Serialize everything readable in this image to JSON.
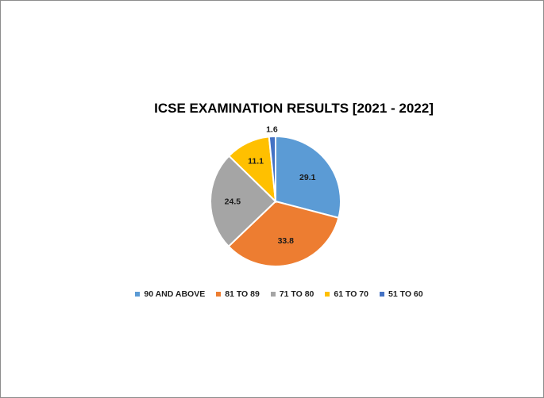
{
  "chart_data": {
    "type": "pie",
    "title": "ICSE EXAMINATION RESULTS [2021 - 2022]",
    "categories": [
      "90 AND ABOVE",
      "81 TO 89",
      "71 TO 80",
      "61 TO 70",
      "51 TO 60"
    ],
    "values": [
      29.1,
      33.8,
      24.5,
      11.1,
      1.6
    ],
    "data_labels": [
      "29.1",
      "33.8",
      "24.5",
      "11.1",
      "1.6"
    ],
    "colors": [
      "#5b9bd5",
      "#ed7d31",
      "#a5a5a5",
      "#ffc000",
      "#4472c4"
    ],
    "start_angle": "12 o'clock",
    "direction": "clockwise",
    "legend_position": "bottom"
  }
}
